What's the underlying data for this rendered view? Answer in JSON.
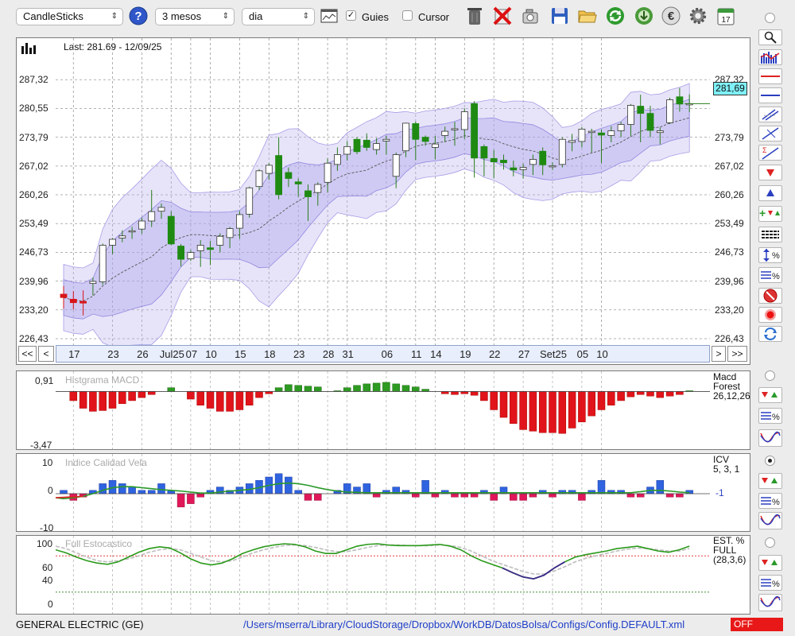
{
  "toolbar": {
    "chart_type": "CandleSticks",
    "period": "3 mesos",
    "interval": "dia",
    "guides_label": "Guies",
    "guides_checked": true,
    "cursor_label": "Cursor",
    "cursor_checked": false,
    "icons": [
      "help-icon",
      "chart-window-icon",
      "trash-icon",
      "delete-icon",
      "camera-icon",
      "save-icon",
      "open-folder-icon",
      "refresh-icon",
      "download-icon",
      "currency-icon",
      "gear-icon",
      "calendar-icon"
    ],
    "calendar_day": "17"
  },
  "main_chart": {
    "last_label": "Last: 281.69 - 12/09/25",
    "price_tag": "281,69",
    "y_ticks": [
      "287,32",
      "280,55",
      "273,79",
      "267,02",
      "260,26",
      "253,49",
      "246,73",
      "239,96",
      "233,20",
      "226,43"
    ],
    "x_labels": [
      "17",
      "23",
      "26",
      "Jul25",
      "07",
      "10",
      "15",
      "18",
      "23",
      "28",
      "31",
      "06",
      "11",
      "14",
      "19",
      "22",
      "27",
      "Set25",
      "05",
      "10"
    ],
    "nav": {
      "first": "<<",
      "prev": "<",
      "next": ">",
      "last": ">>"
    }
  },
  "chart_data": {
    "type": "candlestick",
    "ylim": [
      226.43,
      290.5
    ],
    "candles": [
      {
        "o": 236.9,
        "h": 238.8,
        "l": 233.5,
        "c": 236.1
      },
      {
        "o": 235.7,
        "h": 237.6,
        "l": 233.3,
        "c": 234.9
      },
      {
        "o": 235.2,
        "h": 237.8,
        "l": 231.9,
        "c": 234.8
      },
      {
        "o": 239.4,
        "h": 240.8,
        "l": 236.6,
        "c": 239.9
      },
      {
        "o": 239.8,
        "h": 248.8,
        "l": 239.1,
        "c": 248.4
      },
      {
        "o": 248.4,
        "h": 250.1,
        "l": 246.3,
        "c": 249.8
      },
      {
        "o": 250.1,
        "h": 251.9,
        "l": 249.1,
        "c": 250.6
      },
      {
        "o": 251.6,
        "h": 252.7,
        "l": 249.9,
        "c": 251.8
      },
      {
        "o": 252.2,
        "h": 254.9,
        "l": 251.1,
        "c": 254.1
      },
      {
        "o": 254.1,
        "h": 261.4,
        "l": 252.7,
        "c": 256.3
      },
      {
        "o": 256.4,
        "h": 258.2,
        "l": 254.6,
        "c": 257.3
      },
      {
        "o": 255.2,
        "h": 256.4,
        "l": 248.4,
        "c": 248.7
      },
      {
        "o": 248.2,
        "h": 248.7,
        "l": 243.4,
        "c": 245.1
      },
      {
        "o": 245.2,
        "h": 247.3,
        "l": 244.7,
        "c": 246.7
      },
      {
        "o": 247.1,
        "h": 249.6,
        "l": 243.3,
        "c": 248.4
      },
      {
        "o": 247.8,
        "h": 249.4,
        "l": 243.7,
        "c": 247.4
      },
      {
        "o": 248.4,
        "h": 251.2,
        "l": 246.7,
        "c": 250.5
      },
      {
        "o": 250.2,
        "h": 252.7,
        "l": 247.7,
        "c": 252.3
      },
      {
        "o": 252.4,
        "h": 256.4,
        "l": 249.9,
        "c": 255.6
      },
      {
        "o": 255.7,
        "h": 262.2,
        "l": 254.9,
        "c": 261.9
      },
      {
        "o": 262.2,
        "h": 266.3,
        "l": 261.4,
        "c": 265.9
      },
      {
        "o": 265.3,
        "h": 267.7,
        "l": 263.8,
        "c": 267.2
      },
      {
        "o": 269.5,
        "h": 273.8,
        "l": 259.2,
        "c": 260.3
      },
      {
        "o": 265.5,
        "h": 266.7,
        "l": 262.1,
        "c": 264.1
      },
      {
        "o": 263.3,
        "h": 264.1,
        "l": 259.8,
        "c": 262.8
      },
      {
        "o": 261.2,
        "h": 262.7,
        "l": 254.1,
        "c": 259.8
      },
      {
        "o": 260.8,
        "h": 263.2,
        "l": 257.7,
        "c": 262.7
      },
      {
        "o": 263.2,
        "h": 268.8,
        "l": 260.8,
        "c": 267.7
      },
      {
        "o": 267.4,
        "h": 271.4,
        "l": 265.9,
        "c": 269.7
      },
      {
        "o": 269.8,
        "h": 272.9,
        "l": 268.3,
        "c": 271.6
      },
      {
        "o": 273.3,
        "h": 273.8,
        "l": 269.8,
        "c": 270.4
      },
      {
        "o": 273.1,
        "h": 274.7,
        "l": 270.6,
        "c": 271.4
      },
      {
        "o": 270.9,
        "h": 273.6,
        "l": 269.7,
        "c": 272.3
      },
      {
        "o": 272.9,
        "h": 274.1,
        "l": 269.7,
        "c": 273.3
      },
      {
        "o": 264.6,
        "h": 270.2,
        "l": 261.8,
        "c": 269.7
      },
      {
        "o": 270.6,
        "h": 277.2,
        "l": 269.1,
        "c": 277.1
      },
      {
        "o": 277.0,
        "h": 277.5,
        "l": 268.4,
        "c": 273.3
      },
      {
        "o": 273.8,
        "h": 274.2,
        "l": 271.8,
        "c": 272.8
      },
      {
        "o": 271.4,
        "h": 274.1,
        "l": 268.6,
        "c": 272.2
      },
      {
        "o": 274.2,
        "h": 276.3,
        "l": 272.6,
        "c": 275.2
      },
      {
        "o": 275.5,
        "h": 277.4,
        "l": 271.8,
        "c": 275.8
      },
      {
        "o": 275.6,
        "h": 280.6,
        "l": 273.4,
        "c": 279.8
      },
      {
        "o": 281.7,
        "h": 282.3,
        "l": 264.3,
        "c": 268.9
      },
      {
        "o": 271.6,
        "h": 272.1,
        "l": 264.6,
        "c": 268.9
      },
      {
        "o": 268.8,
        "h": 270.8,
        "l": 264.2,
        "c": 268.0
      },
      {
        "o": 268.4,
        "h": 269.7,
        "l": 266.2,
        "c": 267.8
      },
      {
        "o": 266.6,
        "h": 268.3,
        "l": 264.6,
        "c": 266.1
      },
      {
        "o": 266.2,
        "h": 267.6,
        "l": 264.1,
        "c": 266.7
      },
      {
        "o": 267.4,
        "h": 269.7,
        "l": 264.9,
        "c": 268.6
      },
      {
        "o": 270.5,
        "h": 271.4,
        "l": 264.9,
        "c": 267.3
      },
      {
        "o": 266.9,
        "h": 267.9,
        "l": 266.1,
        "c": 267.1
      },
      {
        "o": 267.4,
        "h": 273.8,
        "l": 266.7,
        "c": 273.3
      },
      {
        "o": 272.6,
        "h": 274.6,
        "l": 270.5,
        "c": 273.0
      },
      {
        "o": 272.8,
        "h": 276.2,
        "l": 271.4,
        "c": 275.7
      },
      {
        "o": 274.9,
        "h": 275.8,
        "l": 270.2,
        "c": 275.2
      },
      {
        "o": 274.8,
        "h": 275.6,
        "l": 267.7,
        "c": 274.3
      },
      {
        "o": 274.2,
        "h": 276.4,
        "l": 272.6,
        "c": 275.3
      },
      {
        "o": 275.3,
        "h": 277.4,
        "l": 273.8,
        "c": 276.8
      },
      {
        "o": 276.8,
        "h": 281.6,
        "l": 274.1,
        "c": 281.3
      },
      {
        "o": 281.1,
        "h": 283.8,
        "l": 272.6,
        "c": 279.4
      },
      {
        "o": 279.4,
        "h": 281.2,
        "l": 273.8,
        "c": 275.4
      },
      {
        "o": 274.9,
        "h": 276.1,
        "l": 272.1,
        "c": 275.3
      },
      {
        "o": 277.2,
        "h": 283.1,
        "l": 276.9,
        "c": 282.6
      },
      {
        "o": 283.3,
        "h": 285.4,
        "l": 279.8,
        "c": 281.6
      },
      {
        "o": 281.6,
        "h": 283.9,
        "l": 279.7,
        "c": 281.69
      }
    ]
  },
  "macd": {
    "title": "Histgrama MACD",
    "label_name": "Macd",
    "label_type": "Forest",
    "params": "26,12,26",
    "y_top": "0,91",
    "y_bottom": "-3,47",
    "ylim": [
      -3.47,
      0.91
    ],
    "values": [
      0,
      -0.6,
      -1.1,
      -1.3,
      -1.25,
      -1.1,
      -0.8,
      -0.6,
      -0.4,
      -0.2,
      0,
      0.25,
      0,
      -0.5,
      -0.9,
      -1.1,
      -1.3,
      -1.3,
      -1.2,
      -0.9,
      -0.4,
      -0.15,
      0.25,
      0.45,
      0.4,
      0.35,
      0.3,
      0,
      0.05,
      0.25,
      0.4,
      0.5,
      0.55,
      0.6,
      0.5,
      0.4,
      0.3,
      0.15,
      0,
      -0.15,
      -0.2,
      -0.15,
      -0.25,
      -0.6,
      -1.2,
      -1.7,
      -2.1,
      -2.5,
      -2.6,
      -2.7,
      -2.7,
      -2.75,
      -2.4,
      -2.0,
      -1.6,
      -1.2,
      -0.9,
      -0.6,
      -0.35,
      -0.2,
      -0.3,
      -0.4,
      -0.3,
      -0.2,
      0.05
    ]
  },
  "icv": {
    "title": "Indice Calidad Vela",
    "label_name": "ICV",
    "params": "5, 3, 1",
    "right_value": "-1",
    "y_top": "10",
    "y_mid": "0",
    "y_bottom": "-10",
    "ylim": [
      -10,
      10
    ],
    "values": [
      1,
      -2,
      -1,
      1,
      3,
      4,
      3,
      2,
      1,
      1,
      3,
      1,
      -4,
      -3,
      -1,
      1,
      2,
      1,
      2,
      3,
      4,
      5,
      6,
      5,
      1,
      -2,
      -2,
      0,
      1,
      3,
      2,
      3,
      -1,
      1,
      2,
      1,
      -1,
      4,
      -1,
      1,
      -1,
      -1,
      -1,
      1,
      -2,
      2,
      -2,
      -2,
      -1,
      1,
      -1,
      1,
      1,
      -2,
      1,
      4,
      1,
      1,
      -1,
      -1,
      2,
      4,
      -1,
      -1,
      1,
      -1,
      5,
      2,
      -1
    ],
    "line": [
      -1.5,
      -1.2,
      -0.8,
      0,
      1,
      1.8,
      2.1,
      2.1,
      1.8,
      1.5,
      1.2,
      1,
      0.8,
      0.5,
      0.2,
      0.2,
      0.5,
      0.8,
      1,
      1.3,
      1.8,
      2.5,
      3,
      3.2,
      3,
      2.5,
      1.8,
      1.2,
      0.8,
      0.5,
      0.4,
      0.3,
      0.3,
      0.3,
      0.3,
      0.3,
      0.3,
      0.3,
      0.3,
      0.3,
      0.3,
      0.3,
      0.3,
      0.3,
      0.3,
      0.3,
      0.3,
      0.3,
      0.3,
      0.3,
      0.3,
      0.3,
      0.3,
      0.3,
      0.3,
      0.3,
      0.3,
      0.3,
      0.3,
      0.6,
      1,
      1,
      0.8,
      0.5,
      0.3,
      0.3,
      0.3
    ]
  },
  "stoch": {
    "title": "Full Estocastico",
    "label_name": "EST. %",
    "label_type": "FULL",
    "params": "(28,3,6)",
    "y_ticks": [
      "100",
      "60",
      "40",
      "0"
    ],
    "ylim": [
      0,
      100
    ],
    "k": [
      90,
      85,
      78,
      72,
      68,
      66,
      70,
      78,
      86,
      92,
      95,
      93,
      85,
      75,
      68,
      65,
      68,
      75,
      84,
      90,
      95,
      98,
      100,
      99,
      95,
      88,
      84,
      84,
      90,
      96,
      99,
      100,
      98,
      97,
      97,
      97,
      98,
      99,
      96,
      90,
      80,
      72,
      66,
      60,
      52,
      45,
      42,
      48,
      60,
      70,
      78,
      82,
      85,
      88,
      92,
      94,
      96,
      92,
      88,
      86,
      90,
      96
    ],
    "d": [
      96,
      92,
      85,
      78,
      72,
      70,
      72,
      75,
      80,
      86,
      90,
      92,
      90,
      84,
      78,
      72,
      70,
      72,
      78,
      85,
      90,
      94,
      97,
      98,
      97,
      94,
      90,
      87,
      87,
      90,
      94,
      97,
      98,
      98,
      97,
      97,
      97,
      98,
      97,
      94,
      88,
      80,
      72,
      66,
      60,
      54,
      50,
      50,
      55,
      62,
      70,
      76,
      80,
      84,
      88,
      91,
      93,
      92,
      90,
      88,
      88,
      92
    ]
  },
  "status": {
    "ticker": "GENERAL ELECTRIC (GE)",
    "config_path": "/Users/mserra/Library/CloudStorage/Dropbox/WorkDB/DatosBolsa/Configs/Config.DEFAULT.xml",
    "state": "OFF"
  }
}
